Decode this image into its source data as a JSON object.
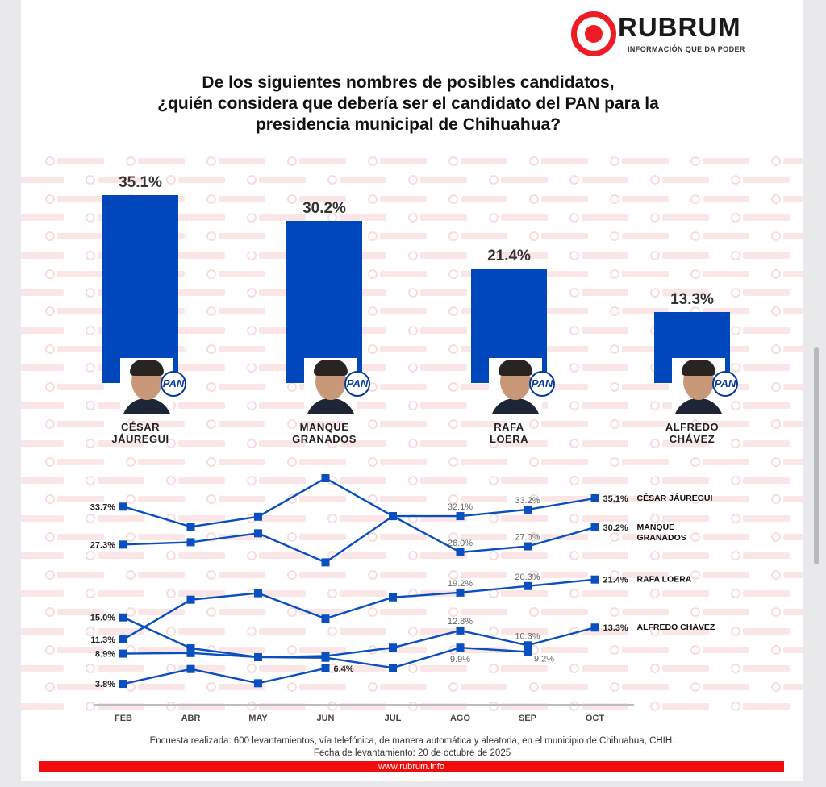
{
  "logo": {
    "name": "RUBRUM",
    "tagline": "INFORMACIÓN QUE DA PODER",
    "watermark": "RUBRUM"
  },
  "title_lines": [
    "De los siguientes nombres de posibles candidatos,",
    "¿quién considera que debería ser el candidato del PAN para la",
    "presidencia municipal de Chihuahua?"
  ],
  "party_label": "PAN",
  "colors": {
    "bar": "#0047bb",
    "line": "#0a4fbf",
    "brand_red": "#ee1c25"
  },
  "chart_data": [
    {
      "type": "bar",
      "categories": [
        "CÉSAR JÁUREGUI",
        "MANQUE GRANADOS",
        "RAFA LOERA",
        "ALFREDO CHÁVEZ"
      ],
      "name_lines": [
        [
          "CÉSAR",
          "JÁUREGUI"
        ],
        [
          "MANQUE",
          "GRANADOS"
        ],
        [
          "RAFA",
          "LOERA"
        ],
        [
          "ALFREDO",
          "CHÁVEZ"
        ]
      ],
      "values": [
        35.1,
        30.2,
        21.4,
        13.3
      ],
      "value_labels": [
        "35.1%",
        "30.2%",
        "21.4%",
        "13.3%"
      ],
      "ylim": [
        0,
        40
      ]
    },
    {
      "type": "line",
      "x": [
        "FEB",
        "ABR",
        "MAY",
        "JUN",
        "JUL",
        "AGO",
        "SEP",
        "OCT"
      ],
      "series": [
        {
          "name": "MANQUE GRANADOS",
          "values": [
            33.7,
            30.3,
            32.0,
            38.5,
            32.1,
            26.0,
            27.0,
            30.2
          ]
        },
        {
          "name": "CÉSAR JÁUREGUI",
          "values": [
            27.3,
            27.7,
            29.2,
            24.3,
            32.1,
            32.1,
            33.2,
            35.1
          ]
        },
        {
          "name": "RAFA LOERA",
          "values": [
            11.3,
            18.0,
            19.1,
            14.8,
            18.4,
            19.2,
            20.3,
            21.4
          ]
        },
        {
          "name": "ALFREDO CHÁVEZ",
          "values": [
            8.9,
            9.0,
            8.3,
            8.5,
            9.9,
            12.8,
            10.3,
            13.3
          ]
        },
        {
          "name": "",
          "values": [
            15.0,
            9.8,
            8.3,
            8.2,
            6.5,
            9.9,
            9.2,
            null
          ]
        },
        {
          "name": "",
          "values": [
            3.8,
            6.3,
            3.9,
            6.4,
            null,
            null,
            null,
            null
          ]
        }
      ],
      "annotations": [
        {
          "text": "33.7%",
          "series": 0,
          "x": 0,
          "style": "left"
        },
        {
          "text": "27.3%",
          "series": 1,
          "x": 0,
          "style": "left"
        },
        {
          "text": "15.0%",
          "series": 4,
          "x": 0,
          "style": "left"
        },
        {
          "text": "11.3%",
          "series": 2,
          "x": 0,
          "style": "left"
        },
        {
          "text": "8.9%",
          "series": 3,
          "x": 0,
          "style": "left"
        },
        {
          "text": "3.8%",
          "series": 5,
          "x": 0,
          "style": "left"
        },
        {
          "text": "6.4%",
          "series": 5,
          "x": 3,
          "style": "right"
        },
        {
          "text": "32.1%",
          "series": 1,
          "x": 5,
          "style": "above"
        },
        {
          "text": "33.2%",
          "series": 1,
          "x": 6,
          "style": "above"
        },
        {
          "text": "26.0%",
          "series": 0,
          "x": 5,
          "style": "above"
        },
        {
          "text": "27.0%",
          "series": 0,
          "x": 6,
          "style": "above"
        },
        {
          "text": "19.2%",
          "series": 2,
          "x": 5,
          "style": "above"
        },
        {
          "text": "20.3%",
          "series": 2,
          "x": 6,
          "style": "above"
        },
        {
          "text": "12.8%",
          "series": 3,
          "x": 5,
          "style": "above"
        },
        {
          "text": "10.3%",
          "series": 3,
          "x": 6,
          "style": "above"
        },
        {
          "text": "9.9%",
          "series": 4,
          "x": 5,
          "style": "below"
        },
        {
          "text": "9.2%",
          "series": 4,
          "x": 6,
          "style": "belowright"
        },
        {
          "text": "35.1%",
          "series": 1,
          "x": 7,
          "style": "end"
        },
        {
          "text": "30.2%",
          "series": 0,
          "x": 7,
          "style": "end"
        },
        {
          "text": "21.4%",
          "series": 2,
          "x": 7,
          "style": "end"
        },
        {
          "text": "13.3%",
          "series": 3,
          "x": 7,
          "style": "end"
        }
      ],
      "end_labels": [
        {
          "series": 1,
          "lines": [
            "CÉSAR JÁUREGUI"
          ]
        },
        {
          "series": 0,
          "lines": [
            "MANQUE",
            "GRANADOS"
          ]
        },
        {
          "series": 2,
          "lines": [
            "RAFA LOERA"
          ]
        },
        {
          "series": 3,
          "lines": [
            "ALFREDO CHÁVEZ"
          ]
        }
      ],
      "ylim": [
        0,
        40
      ]
    }
  ],
  "footer": {
    "method": "Encuesta realizada: 600 levantamientos, vía telefónica, de manera automática y aleatoria, en el municipio de Chihuahua, CHIH.",
    "date": "Fecha de levantamiento: 20 de octubre de 2025",
    "url": "www.rubrum.info"
  }
}
